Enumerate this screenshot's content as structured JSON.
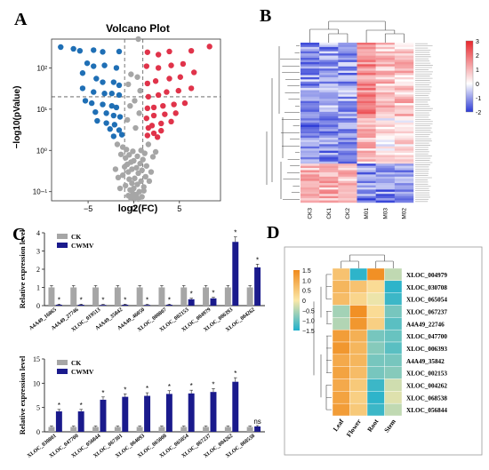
{
  "panel_letters": {
    "a": "A",
    "b": "B",
    "c": "C",
    "d": "D"
  },
  "chart_data": [
    {
      "panel": "A",
      "type": "scatter",
      "title": "Volcano Plot",
      "xlabel": "log2(FC)",
      "ylabel": "−log10(pValue)",
      "xticks": [
        -5,
        0,
        5
      ],
      "ytick_labels": [
        "10−¹",
        "10⁰",
        "10¹",
        "10²"
      ],
      "y_scale": "log",
      "xlim": [
        -9,
        9.5
      ],
      "ylim": [
        0.06,
        500
      ],
      "thresholds": {
        "log2fc": [
          -1,
          1
        ],
        "neg_log10_p": 1.3
      },
      "colors": {
        "down": "#1f6fb5",
        "up": "#e0334a",
        "ns": "#a6a6a6"
      },
      "series": [
        {
          "group": "down",
          "points": [
            [
              -8.0,
              320
            ],
            [
              -6.6,
              290
            ],
            [
              -5.9,
              260
            ],
            [
              -4.4,
              270
            ],
            [
              -3.4,
              245
            ],
            [
              -1.6,
              250
            ],
            [
              -5.1,
              130
            ],
            [
              -4.4,
              110
            ],
            [
              -3.2,
              115
            ],
            [
              -1.9,
              100
            ],
            [
              -5.6,
              75
            ],
            [
              -4.1,
              55
            ],
            [
              -3.4,
              45
            ],
            [
              -2.2,
              45
            ],
            [
              -1.6,
              38
            ],
            [
              -5.6,
              32
            ],
            [
              -4.4,
              26
            ],
            [
              -3.2,
              24
            ],
            [
              -2.4,
              24
            ],
            [
              -1.6,
              22
            ],
            [
              -5.3,
              16
            ],
            [
              -4.6,
              14
            ],
            [
              -3.4,
              13
            ],
            [
              -2.4,
              12
            ],
            [
              -1.9,
              11
            ],
            [
              -4.2,
              8.5
            ],
            [
              -3.0,
              8
            ],
            [
              -2.2,
              7
            ],
            [
              -1.5,
              6.5
            ],
            [
              -4.0,
              5.2
            ],
            [
              -3.0,
              4.6
            ],
            [
              -2.1,
              4.2
            ],
            [
              -2.6,
              3.3
            ],
            [
              -1.6,
              3.1
            ],
            [
              -1.3,
              2.4
            ],
            [
              -2.2,
              2.2
            ]
          ]
        },
        {
          "group": "up",
          "points": [
            [
              8.3,
              330
            ],
            [
              6.3,
              260
            ],
            [
              3.9,
              250
            ],
            [
              1.5,
              240
            ],
            [
              2.7,
              210
            ],
            [
              5.4,
              125
            ],
            [
              4.1,
              115
            ],
            [
              2.7,
              100
            ],
            [
              1.4,
              110
            ],
            [
              6.6,
              78
            ],
            [
              5.1,
              60
            ],
            [
              3.9,
              55
            ],
            [
              2.4,
              48
            ],
            [
              1.5,
              42
            ],
            [
              6.3,
              32
            ],
            [
              4.9,
              28
            ],
            [
              3.6,
              26
            ],
            [
              2.7,
              22
            ],
            [
              1.6,
              20
            ],
            [
              5.6,
              14
            ],
            [
              4.4,
              13
            ],
            [
              3.2,
              12
            ],
            [
              2.2,
              11
            ],
            [
              1.5,
              10.5
            ],
            [
              4.6,
              8
            ],
            [
              3.4,
              7.5
            ],
            [
              2.2,
              7
            ],
            [
              1.4,
              6
            ],
            [
              4.1,
              5
            ],
            [
              3.0,
              4.5
            ],
            [
              2.0,
              4
            ],
            [
              1.6,
              3.5
            ],
            [
              3.0,
              3
            ],
            [
              2.2,
              2.6
            ],
            [
              1.5,
              2.3
            ],
            [
              2.6,
              2.1
            ]
          ]
        },
        {
          "group": "ns",
          "points": [
            [
              0.5,
              500
            ],
            [
              -0.3,
              70
            ],
            [
              0.4,
              60
            ],
            [
              -0.6,
              40
            ],
            [
              0.7,
              28
            ],
            [
              0.1,
              16
            ],
            [
              -0.4,
              12
            ],
            [
              0.6,
              8
            ],
            [
              -0.7,
              5.5
            ],
            [
              0.2,
              3.5
            ],
            [
              -1.8,
              1.4
            ],
            [
              1.6,
              1.4
            ],
            [
              -1.2,
              1.2
            ],
            [
              -0.8,
              1.05
            ],
            [
              0.8,
              1.0
            ],
            [
              -0.1,
              0.95
            ],
            [
              2.4,
              0.92
            ],
            [
              1.2,
              0.85
            ],
            [
              -1.4,
              0.8
            ],
            [
              -0.5,
              0.78
            ],
            [
              0.4,
              0.72
            ],
            [
              2.1,
              0.7
            ],
            [
              -0.9,
              0.66
            ],
            [
              1.0,
              0.6
            ],
            [
              0.0,
              0.56
            ],
            [
              -0.3,
              0.52
            ],
            [
              0.7,
              0.48
            ],
            [
              -0.7,
              0.46
            ],
            [
              1.4,
              0.42
            ],
            [
              -1.0,
              0.4
            ],
            [
              0.3,
              0.38
            ],
            [
              -0.2,
              0.35
            ],
            [
              0.9,
              0.33
            ],
            [
              -0.6,
              0.3
            ],
            [
              0.5,
              0.28
            ],
            [
              -1.2,
              0.25
            ],
            [
              1.3,
              0.23
            ],
            [
              0.1,
              0.21
            ],
            [
              -0.5,
              0.2
            ],
            [
              0.8,
              0.18
            ],
            [
              -0.2,
              0.16
            ],
            [
              0.4,
              0.15
            ],
            [
              -0.9,
              0.14
            ],
            [
              1.1,
              0.13
            ],
            [
              0.0,
              0.12
            ],
            [
              -0.4,
              0.11
            ],
            [
              0.6,
              0.1
            ],
            [
              -0.1,
              0.09
            ],
            [
              0.3,
              0.085
            ],
            [
              -0.6,
              0.08
            ],
            [
              0.9,
              0.075
            ],
            [
              0.1,
              0.07
            ],
            [
              -0.3,
              0.068
            ],
            [
              0.5,
              0.066
            ],
            [
              1.1,
              0.105
            ],
            [
              -1.5,
              0.12
            ],
            [
              1.7,
              0.18
            ],
            [
              -1.7,
              0.22
            ],
            [
              1.9,
              0.3
            ],
            [
              -2.0,
              0.35
            ]
          ]
        }
      ]
    },
    {
      "panel": "B",
      "type": "heatmap",
      "columns": [
        "CK3",
        "CK1",
        "CK2",
        "M01",
        "M03",
        "M02"
      ],
      "legend_ticks": [
        "3",
        "2",
        "1",
        "0",
        "-1",
        "-2"
      ],
      "legend_colors": [
        "#e8262c",
        "#ffffff",
        "#2c3ad6"
      ],
      "row_count": 74
    },
    {
      "panel": "C-top",
      "type": "bar",
      "ylabel": "Relative expression level",
      "ylim": [
        0,
        4
      ],
      "yticks": [
        0,
        1,
        2,
        3,
        4
      ],
      "categories": [
        "A4A49_16865",
        "A4A49_27746",
        "XLOC_019513",
        "A4A49_35842",
        "A4A49_46050",
        "XLOC_000807",
        "XLOC_002153",
        "XLOC_004979",
        "XLOC_006393",
        "XLOC_004262"
      ],
      "series": [
        {
          "name": "CK",
          "values": [
            1.0,
            1.0,
            1.0,
            1.0,
            1.0,
            1.0,
            1.0,
            1.0,
            1.0,
            1.0
          ]
        },
        {
          "name": "CWMV",
          "values": [
            0.05,
            0.05,
            0.04,
            0.05,
            0.04,
            0.05,
            0.35,
            0.4,
            3.5,
            2.1
          ]
        }
      ],
      "annotations": [
        "*",
        "*",
        "*",
        "*",
        "*",
        "*",
        "*",
        "*",
        "*",
        "*"
      ],
      "colors": {
        "CK": "#a6a6a6",
        "CWMV": "#1a1a8c"
      }
    },
    {
      "panel": "C-bottom",
      "type": "bar",
      "ylabel": "Relative expression level",
      "ylim": [
        0,
        15
      ],
      "yticks": [
        0,
        5,
        10,
        15
      ],
      "categories": [
        "XLOC_030801",
        "XLOC_047700",
        "XLOC_056844",
        "XLOC_067301",
        "XLOC_064093",
        "XLOC_065008",
        "XLOC_065054",
        "XLOC_067237",
        "XLOC_004262",
        "XLOC_068538"
      ],
      "series": [
        {
          "name": "CK",
          "values": [
            1.0,
            1.0,
            1.0,
            1.0,
            1.0,
            1.0,
            1.0,
            1.0,
            1.0,
            1.0
          ]
        },
        {
          "name": "CWMV",
          "values": [
            4.2,
            4.2,
            6.6,
            7.2,
            7.4,
            7.8,
            7.9,
            8.2,
            10.3,
            1.1
          ]
        }
      ],
      "annotations": [
        "*",
        "*",
        "*",
        "*",
        "*",
        "*",
        "*",
        "*",
        "*",
        "ns"
      ],
      "colors": {
        "CK": "#a6a6a6",
        "CWMV": "#1a1a8c"
      }
    },
    {
      "panel": "D",
      "type": "heatmap",
      "columns": [
        "Leaf",
        "Flower",
        "Root",
        "Stem"
      ],
      "rows": [
        "XLOC_004979",
        "XLOC_030708",
        "XLOC_065054",
        "XLOC_067237",
        "A4A49_22746",
        "XLOC_047700",
        "XLOC_006393",
        "A4A49_35842",
        "XLOC_002153",
        "XLOC_004262",
        "XLOC_068538",
        "XLOC_056844"
      ],
      "values": [
        [
          0.6,
          -1.4,
          1.4,
          -0.4
        ],
        [
          0.8,
          0.6,
          0.2,
          -1.4
        ],
        [
          0.7,
          0.3,
          -0.1,
          -1.3
        ],
        [
          -0.6,
          1.4,
          0.2,
          -0.9
        ],
        [
          -0.5,
          1.3,
          0.4,
          -1.1
        ],
        [
          1.2,
          0.9,
          -0.9,
          -1.0
        ],
        [
          1.3,
          0.8,
          -0.8,
          -1.1
        ],
        [
          1.0,
          0.8,
          -0.9,
          -0.9
        ],
        [
          1.1,
          0.7,
          -0.9,
          -0.8
        ],
        [
          1.0,
          0.5,
          -1.3,
          -0.3
        ],
        [
          1.1,
          0.4,
          -1.4,
          -0.2
        ],
        [
          1.2,
          0.5,
          -1.3,
          -0.4
        ]
      ],
      "legend_ticks": [
        "1.5",
        "1.0",
        "0.5",
        "0",
        "−0.5",
        "−1.0",
        "−1.5"
      ],
      "legend_colors": [
        "#f08a1c",
        "#fbe8a8",
        "#1fb0cc"
      ]
    }
  ]
}
